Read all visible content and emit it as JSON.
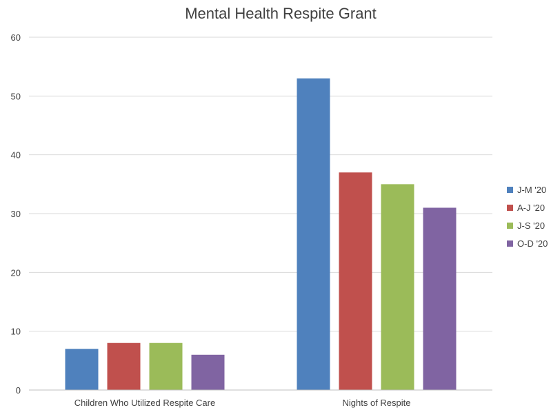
{
  "chart_data": {
    "type": "bar",
    "title": "Mental Health Respite Grant",
    "categories": [
      "Children Who Utilized Respite Care",
      "Nights of Respite"
    ],
    "series": [
      {
        "name": "J-M '20",
        "values": [
          7,
          53
        ],
        "color": "#4f81bd"
      },
      {
        "name": "A-J '20",
        "values": [
          8,
          37
        ],
        "color": "#c0504d"
      },
      {
        "name": "J-S '20",
        "values": [
          8,
          35
        ],
        "color": "#9bbb59"
      },
      {
        "name": "O-D '20",
        "values": [
          6,
          31
        ],
        "color": "#8064a2"
      }
    ],
    "yticks": [
      "0",
      "10",
      "20",
      "30",
      "40",
      "50",
      "60"
    ],
    "ylim": [
      0,
      60
    ],
    "grid": true,
    "legend": "right"
  }
}
